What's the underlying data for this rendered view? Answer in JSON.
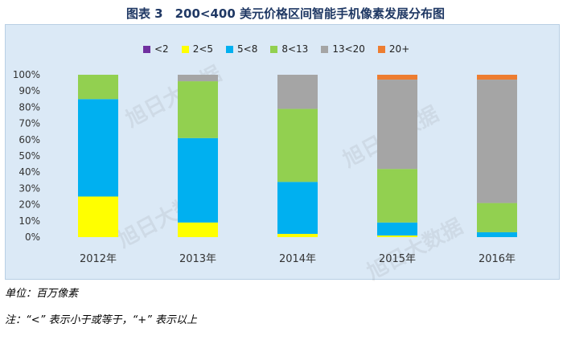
{
  "chart_data": {
    "type": "bar",
    "stacked": true,
    "title": "图表 3　200<400 美元价格区间智能手机像素发展分布图",
    "categories": [
      "2012年",
      "2013年",
      "2014年",
      "2015年",
      "2016年"
    ],
    "ylim": [
      0,
      100
    ],
    "y_ticks": [
      "0%",
      "10%",
      "20%",
      "30%",
      "40%",
      "50%",
      "60%",
      "70%",
      "80%",
      "90%",
      "100%"
    ],
    "legend_position": "top",
    "series": [
      {
        "name": "<2",
        "color": "#7030a0",
        "values": [
          0,
          0,
          0,
          0,
          0
        ]
      },
      {
        "name": "2<5",
        "color": "#ffff00",
        "values": [
          25,
          9,
          2,
          1,
          0
        ]
      },
      {
        "name": "5<8",
        "color": "#00b0f0",
        "values": [
          60,
          52,
          32,
          8,
          3
        ]
      },
      {
        "name": "8<13",
        "color": "#92d050",
        "values": [
          15,
          35,
          45,
          33,
          18
        ]
      },
      {
        "name": "13<20",
        "color": "#a5a5a5",
        "values": [
          0,
          4,
          21,
          55,
          76
        ]
      },
      {
        "name": "20+",
        "color": "#ed7d31",
        "values": [
          0,
          0,
          0,
          3,
          3
        ]
      }
    ]
  },
  "notes": {
    "unit": "单位：百万像素",
    "note": "注：“<” 表示小于或等于，“+” 表示以上"
  },
  "watermark": {
    "text": "旭日大数据"
  }
}
